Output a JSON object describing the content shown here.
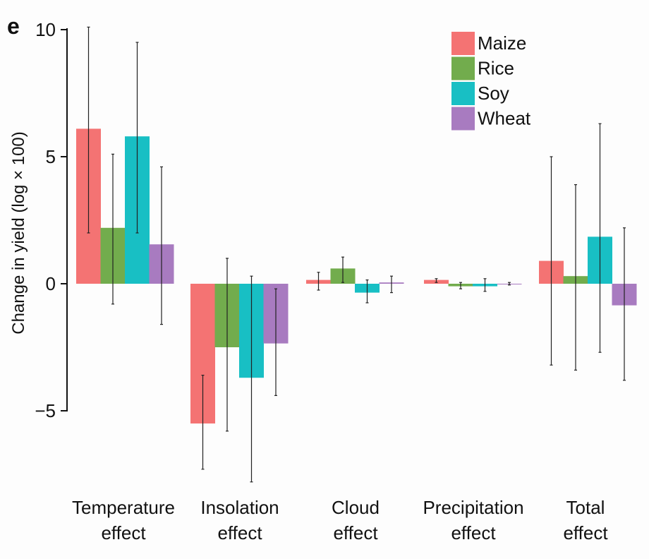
{
  "panel_label": "e",
  "chart_data": {
    "type": "bar",
    "categories": [
      [
        "Temperature",
        "effect"
      ],
      [
        "Insolation",
        "effect"
      ],
      [
        "Cloud",
        "effect"
      ],
      [
        "Precipitation",
        "effect"
      ],
      [
        "Total",
        "effect"
      ]
    ],
    "series": [
      {
        "name": "Maize",
        "color": "#f47373",
        "values": [
          6.1,
          -5.5,
          0.15,
          0.15,
          0.9
        ],
        "err_low": [
          2.0,
          -7.3,
          -0.25,
          0.05,
          -3.2
        ],
        "err_high": [
          10.1,
          -3.6,
          0.45,
          0.2,
          5.0
        ]
      },
      {
        "name": "Rice",
        "color": "#72ac4d",
        "values": [
          2.2,
          -2.5,
          0.6,
          -0.1,
          0.3
        ],
        "err_low": [
          -0.8,
          -5.8,
          0.05,
          -0.2,
          -3.4
        ],
        "err_high": [
          5.1,
          1.0,
          1.05,
          0.05,
          3.9
        ]
      },
      {
        "name": "Soy",
        "color": "#18bfc4",
        "values": [
          5.8,
          -3.7,
          -0.35,
          -0.1,
          1.85
        ],
        "err_low": [
          2.0,
          -7.8,
          -0.75,
          -0.3,
          -2.7
        ],
        "err_high": [
          9.5,
          0.3,
          0.15,
          0.2,
          6.3
        ]
      },
      {
        "name": "Wheat",
        "color": "#a87bc0",
        "values": [
          1.55,
          -2.35,
          0.05,
          0.0,
          -0.85
        ],
        "err_low": [
          -1.6,
          -4.4,
          -0.35,
          -0.05,
          -3.8
        ],
        "err_high": [
          4.6,
          -0.2,
          0.3,
          0.05,
          2.2
        ]
      }
    ],
    "xlabel": "",
    "ylabel": "Change in yield (log × 100)",
    "ylim": [
      -8.2,
      10.5
    ],
    "yticks": [
      10,
      5,
      0,
      -5
    ],
    "ytick_labels": [
      "10",
      "5",
      "0",
      "−5"
    ],
    "grid": false,
    "legend_position": "top-right"
  }
}
